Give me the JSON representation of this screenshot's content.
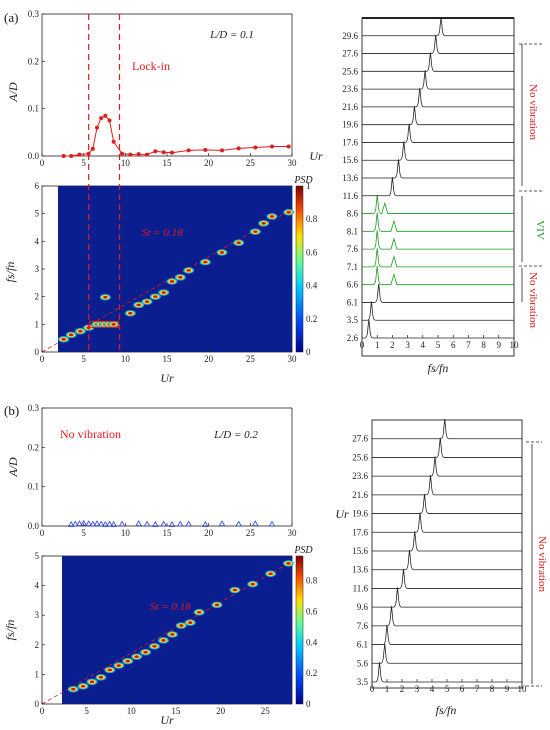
{
  "panel_labels": [
    "(a)",
    "(b)"
  ],
  "annotations": {
    "a_ld": "L/D = 0.1",
    "a_lockin": "Lock-in",
    "a_st": "St = 0.18",
    "a_novib_top": "No vibration",
    "a_viv": "VIV",
    "a_novib_bottom": "No vibration",
    "b_ld": "L/D = 0.2",
    "b_novib": "No vibration",
    "b_st": "St = 0.18",
    "b_novib_right": "No vibration"
  },
  "colors": {
    "red": "#e01c1c",
    "blue": "#2a3fd6",
    "green": "#1a9b1a",
    "dark_red": "#7a1010",
    "map_bg": "#0b1e8f"
  },
  "chart_data": [
    {
      "id": "a_amp",
      "type": "line",
      "ylabel": "A/D",
      "xlim": [
        0,
        30
      ],
      "ylim": [
        0,
        0.3
      ],
      "xticks": [
        "0",
        "5",
        "10",
        "15",
        "20",
        "25",
        "30"
      ],
      "yticks": [
        "0.0",
        "0.1",
        "0.2",
        "0.3"
      ],
      "series": [
        {
          "x": [
            2.6,
            3.5,
            4.5,
            5.6,
            6.1,
            6.6,
            7.1,
            7.6,
            8.1,
            8.6,
            9.6,
            10.6,
            11.6,
            12.6,
            13.6,
            14.6,
            15.6,
            17.6,
            19.6,
            21.6,
            23.6,
            25.6,
            27.6,
            29.6
          ],
          "y": [
            0.0,
            0.0,
            0.003,
            0.005,
            0.015,
            0.06,
            0.08,
            0.085,
            0.075,
            0.03,
            0.005,
            0.003,
            0.004,
            0.003,
            0.01,
            0.008,
            0.007,
            0.012,
            0.013,
            0.012,
            0.016,
            0.018,
            0.02,
            0.02
          ]
        }
      ]
    },
    {
      "id": "a_psd",
      "type": "heatmap",
      "xlabel": "Ur",
      "ylabel": "fs/fn",
      "xlim": [
        0,
        30
      ],
      "ylim": [
        0,
        6
      ],
      "xticks": [
        "0",
        "5",
        "10",
        "15",
        "20",
        "25",
        "30"
      ],
      "yticks": [
        "0",
        "1",
        "2",
        "3",
        "4",
        "5",
        "6"
      ],
      "colorbar_title": "PSD",
      "colorbar_ticks": [
        "0",
        "0.2",
        "0.4",
        "0.6",
        "0.8",
        "1"
      ],
      "peaks": [
        {
          "x": 2.6,
          "y": 0.46
        },
        {
          "x": 3.5,
          "y": 0.62
        },
        {
          "x": 4.6,
          "y": 0.75
        },
        {
          "x": 5.6,
          "y": 0.88
        },
        {
          "x": 6.6,
          "y": 1.0
        },
        {
          "x": 7.1,
          "y": 1.0
        },
        {
          "x": 7.6,
          "y": 1.0
        },
        {
          "x": 8.1,
          "y": 1.0
        },
        {
          "x": 8.6,
          "y": 1.0
        },
        {
          "x": 7.6,
          "y": 1.98
        },
        {
          "x": 10.6,
          "y": 1.4
        },
        {
          "x": 11.6,
          "y": 1.7
        },
        {
          "x": 12.6,
          "y": 1.82
        },
        {
          "x": 13.6,
          "y": 2.0
        },
        {
          "x": 14.6,
          "y": 2.15
        },
        {
          "x": 15.6,
          "y": 2.55
        },
        {
          "x": 16.6,
          "y": 2.7
        },
        {
          "x": 17.6,
          "y": 2.95
        },
        {
          "x": 19.6,
          "y": 3.25
        },
        {
          "x": 21.6,
          "y": 3.6
        },
        {
          "x": 23.6,
          "y": 3.95
        },
        {
          "x": 25.6,
          "y": 4.35
        },
        {
          "x": 26.6,
          "y": 4.65
        },
        {
          "x": 27.6,
          "y": 4.9
        },
        {
          "x": 29.6,
          "y": 5.05
        }
      ],
      "lockin_lines": [
        5.6,
        9.3
      ]
    },
    {
      "id": "a_waterfall",
      "type": "line",
      "xlabel": "fs/fn",
      "ylabel": "Ur",
      "xlim": [
        0,
        10
      ],
      "xticks": [
        "0",
        "1",
        "2",
        "3",
        "4",
        "5",
        "6",
        "7",
        "8",
        "9",
        "10"
      ],
      "rows": [
        "2.6",
        "3.5",
        "6.1",
        "6.6",
        "7.1",
        "7.6",
        "8.1",
        "8.6",
        "11.6",
        "13.6",
        "15.6",
        "17.6",
        "19.6",
        "21.6",
        "23.6",
        "25.6",
        "27.6",
        "29.6"
      ],
      "peak_f": [
        0.45,
        0.62,
        1.1,
        1.0,
        1.0,
        1.0,
        1.0,
        1.0,
        2.0,
        2.4,
        2.75,
        3.1,
        3.45,
        3.8,
        4.15,
        4.5,
        4.85,
        5.2
      ],
      "second_peak_f": [
        null,
        null,
        null,
        2.1,
        2.1,
        2.1,
        2.1,
        1.5,
        null,
        null,
        null,
        null,
        null,
        null,
        null,
        null,
        null,
        null
      ],
      "row_colors": [
        "dark",
        "dark",
        "dark",
        "green",
        "green",
        "green",
        "green",
        "green",
        "dark",
        "dark",
        "dark",
        "dark",
        "dark",
        "dark",
        "dark",
        "dark",
        "dark",
        "dark"
      ]
    },
    {
      "id": "b_amp",
      "type": "scatter",
      "ylabel": "A/D",
      "xlim": [
        0,
        30
      ],
      "ylim": [
        0,
        0.3
      ],
      "xticks": [
        "0",
        "5",
        "10",
        "15",
        "20",
        "25",
        "30"
      ],
      "yticks": [
        "0.0",
        "0.1",
        "0.2",
        "0.3"
      ],
      "series": [
        {
          "x": [
            3.5,
            4,
            4.5,
            5,
            5.6,
            6.1,
            6.6,
            7.1,
            7.6,
            8.1,
            8.6,
            9.6,
            11.6,
            12.6,
            13.6,
            14.6,
            15.6,
            16.6,
            17.6,
            19.6,
            21.6,
            23.6,
            25.6,
            27.6
          ],
          "y": [
            0.003,
            0.004,
            0.005,
            0.006,
            0.005,
            0.004,
            0.005,
            0.004,
            0.003,
            0.004,
            0.003,
            0.004,
            0.005,
            0.004,
            0.003,
            0.004,
            0.003,
            0.004,
            0.004,
            0.003,
            0.005,
            0.004,
            0.005,
            0.004
          ]
        }
      ]
    },
    {
      "id": "b_psd",
      "type": "heatmap",
      "xlabel": "Ur",
      "ylabel": "fs/fn",
      "xlim": [
        0,
        28
      ],
      "ylim": [
        0,
        5
      ],
      "xticks": [
        "0",
        "5",
        "10",
        "15",
        "20",
        "25"
      ],
      "yticks": [
        "0",
        "1",
        "2",
        "3",
        "4",
        "5"
      ],
      "colorbar_title": "PSD",
      "colorbar_ticks": [
        "0",
        "0.2",
        "0.4",
        "0.6",
        "0.8"
      ],
      "peaks": [
        {
          "x": 3.5,
          "y": 0.5
        },
        {
          "x": 4.6,
          "y": 0.6
        },
        {
          "x": 5.6,
          "y": 0.75
        },
        {
          "x": 6.6,
          "y": 0.9
        },
        {
          "x": 7.6,
          "y": 1.15
        },
        {
          "x": 8.6,
          "y": 1.3
        },
        {
          "x": 9.6,
          "y": 1.45
        },
        {
          "x": 10.6,
          "y": 1.6
        },
        {
          "x": 11.6,
          "y": 1.75
        },
        {
          "x": 12.6,
          "y": 1.95
        },
        {
          "x": 13.6,
          "y": 2.15
        },
        {
          "x": 14.6,
          "y": 2.35
        },
        {
          "x": 15.6,
          "y": 2.65
        },
        {
          "x": 16.6,
          "y": 2.75
        },
        {
          "x": 17.6,
          "y": 3.1
        },
        {
          "x": 19.6,
          "y": 3.35
        },
        {
          "x": 21.6,
          "y": 3.85
        },
        {
          "x": 23.6,
          "y": 4.05
        },
        {
          "x": 25.6,
          "y": 4.4
        },
        {
          "x": 27.6,
          "y": 4.75
        }
      ]
    },
    {
      "id": "b_waterfall",
      "type": "line",
      "xlabel": "fs/fn",
      "ylabel": "Ur",
      "xlim": [
        0,
        10
      ],
      "xticks": [
        "0",
        "1",
        "2",
        "3",
        "4",
        "5",
        "6",
        "7",
        "8",
        "9",
        "10"
      ],
      "rows": [
        "3.5",
        "5.6",
        "6.1",
        "7.6",
        "9.6",
        "11.6",
        "13.6",
        "15.6",
        "17.6",
        "19.6",
        "21.6",
        "23.6",
        "25.6",
        "27.6"
      ],
      "peak_f": [
        0.5,
        0.85,
        1.0,
        1.3,
        1.7,
        2.1,
        2.5,
        2.85,
        3.2,
        3.5,
        3.9,
        4.2,
        4.55,
        4.85
      ]
    }
  ]
}
